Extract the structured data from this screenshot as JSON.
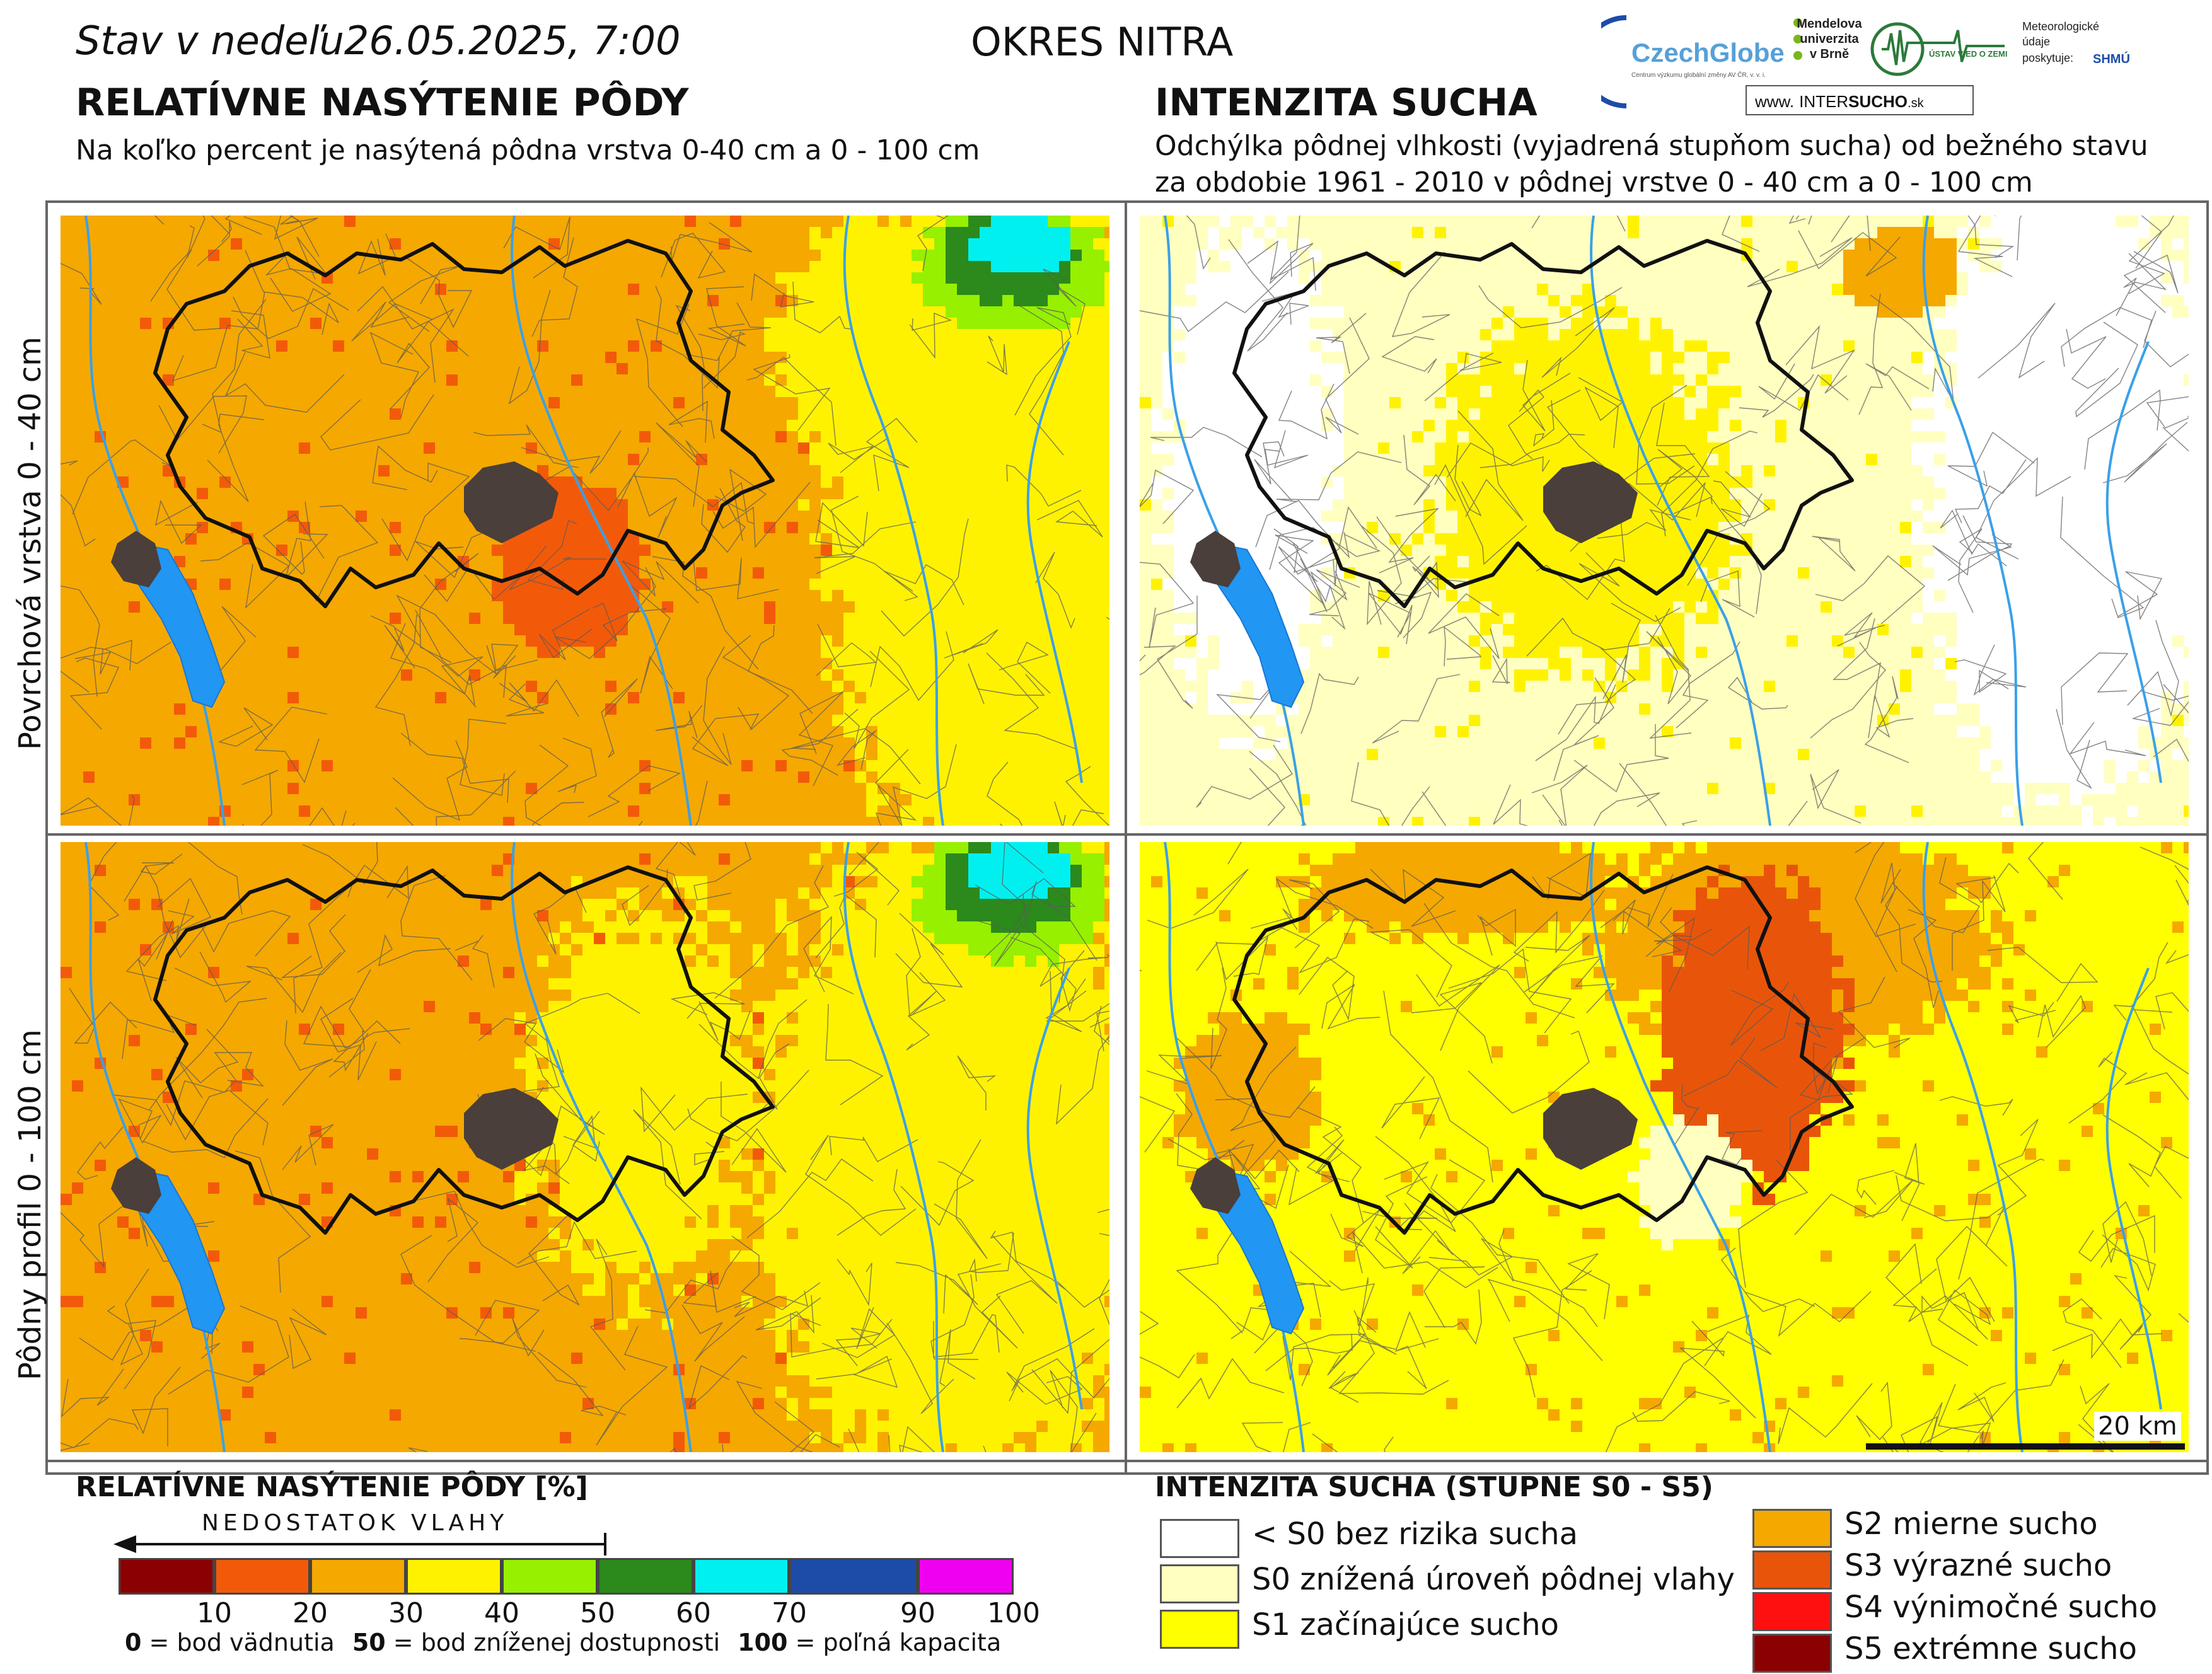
{
  "header": {
    "date_prefix": "Stav v nedeľu",
    "date": "26.05.2025, 7:00",
    "district": "OKRES  NITRA",
    "left_title": "RELATÍVNE NASÝTENIE PÔDY",
    "left_subtitle": "Na koľko percent je nasýtená pôdna vrstva 0-40 cm a 0 - 100 cm",
    "right_title": "INTENZITA SUCHA",
    "right_subtitle_1": "Odchýlka pôdnej vlhkosti (vyjadrená stupňom sucha) od bežného stavu",
    "right_subtitle_2": "za obdobie 1961 - 2010 v pôdnej vrstve 0 - 40 cm a 0 - 100 cm"
  },
  "logos": {
    "czechglobe": "CzechGlobe",
    "czechglobe_sub": "Centrum výzkumu globální změny AV ČR, v. v. i.",
    "mendel_1": "Mendelova",
    "mendel_2": "univerzita",
    "mendel_3": "v Brně",
    "uvz": "ÚSTAV VIED O ZEMI",
    "meteo_1": "Meteorologické",
    "meteo_2": "údaje",
    "meteo_3": "poskytuje:",
    "shmu": "SHMÚ",
    "web_prefix": "www.",
    "web_inter": "INTER",
    "web_sucho": "SUCHO",
    "web_suffix": ".sk"
  },
  "row_labels": {
    "top": "Povrchová vrstva 0 - 40 cm",
    "bottom": "Pôdny profil 0 - 100 cm"
  },
  "scale_bar": "20 km",
  "legend_saturation": {
    "title": "RELATÍVNE NASÝTENIE PÔDY [%]",
    "arrow_label": "NEDOSTATOK VLAHY",
    "colors": [
      "#8b0000",
      "#f25a0a",
      "#f5a800",
      "#fff200",
      "#96f000",
      "#2b8a1b",
      "#00f0f0",
      "#1c4ca8",
      "#f000f0"
    ],
    "ticks": [
      "10",
      "20",
      "30",
      "40",
      "50",
      "60",
      "70",
      "90",
      "100"
    ],
    "note_0": "0",
    "note_0_text": " = bod vädnutia",
    "note_50": "50",
    "note_50_text": " = bod zníženej dostupnosti",
    "note_100": "100",
    "note_100_text": " = poľná kapacita"
  },
  "legend_drought": {
    "title": "INTENZITA SUCHA (STUPNE S0 - S5)",
    "items": [
      {
        "label": "< S0 bez rizika sucha",
        "color": "#ffffff"
      },
      {
        "label": "S0 znížená úroveň pôdnej vlahy",
        "color": "#ffffc0"
      },
      {
        "label": "S1 začínajúce sucho",
        "color": "#ffff00"
      },
      {
        "label": "S2 mierne sucho",
        "color": "#f5a800"
      },
      {
        "label": "S3 výrazné sucho",
        "color": "#e8550a"
      },
      {
        "label": "S4 výnimočné sucho",
        "color": "#ff1010"
      },
      {
        "label": "S5 extrémne sucho",
        "color": "#8b0000"
      }
    ]
  },
  "map_colors": {
    "sat_top_base": "#f5a800",
    "sat_bottom_base": "#f5a800",
    "drought_top_base": "#ffffc0",
    "drought_bottom_base": "#ffff00",
    "water": "#2196f3",
    "city": "#4a3f3a",
    "district_border": "#111111"
  }
}
